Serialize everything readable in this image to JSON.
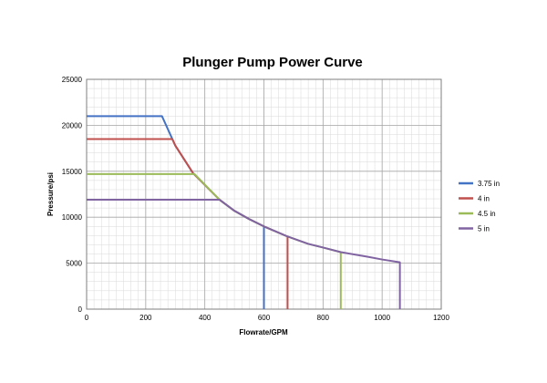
{
  "chart_data": {
    "type": "line",
    "title": "Plunger Pump Power Curve",
    "xlabel": "Flowrate/GPM",
    "ylabel": "Pressure/psi",
    "xlim": [
      0,
      1200
    ],
    "ylim": [
      0,
      25000
    ],
    "x_ticks": [
      0,
      200,
      400,
      600,
      800,
      1000,
      1200
    ],
    "y_ticks": [
      0,
      5000,
      10000,
      15000,
      20000,
      25000
    ],
    "grid": true,
    "legend_position": "right",
    "series": [
      {
        "name": "3.75 in",
        "color": "#4472C4",
        "points": [
          [
            0,
            21000
          ],
          [
            255,
            21000
          ],
          [
            300,
            17800
          ],
          [
            360,
            14800
          ],
          [
            450,
            11900
          ],
          [
            500,
            10700
          ],
          [
            550,
            9800
          ],
          [
            600,
            9000
          ],
          [
            600,
            0
          ]
        ]
      },
      {
        "name": "4 in",
        "color": "#C0504D",
        "points": [
          [
            0,
            18500
          ],
          [
            290,
            18500
          ],
          [
            300,
            17800
          ],
          [
            360,
            14800
          ],
          [
            450,
            11900
          ],
          [
            500,
            10700
          ],
          [
            550,
            9800
          ],
          [
            600,
            9000
          ],
          [
            680,
            7900
          ],
          [
            680,
            0
          ]
        ]
      },
      {
        "name": "4.5 in",
        "color": "#9BBB59",
        "points": [
          [
            0,
            14700
          ],
          [
            365,
            14700
          ],
          [
            450,
            11900
          ],
          [
            500,
            10700
          ],
          [
            550,
            9800
          ],
          [
            600,
            9000
          ],
          [
            680,
            7900
          ],
          [
            750,
            7100
          ],
          [
            800,
            6700
          ],
          [
            860,
            6200
          ],
          [
            860,
            0
          ]
        ]
      },
      {
        "name": "5 in",
        "color": "#8064A2",
        "points": [
          [
            0,
            11900
          ],
          [
            450,
            11900
          ],
          [
            500,
            10700
          ],
          [
            550,
            9800
          ],
          [
            600,
            9000
          ],
          [
            680,
            7900
          ],
          [
            750,
            7100
          ],
          [
            800,
            6700
          ],
          [
            860,
            6200
          ],
          [
            950,
            5700
          ],
          [
            1000,
            5400
          ],
          [
            1060,
            5100
          ],
          [
            1060,
            0
          ]
        ]
      }
    ]
  }
}
